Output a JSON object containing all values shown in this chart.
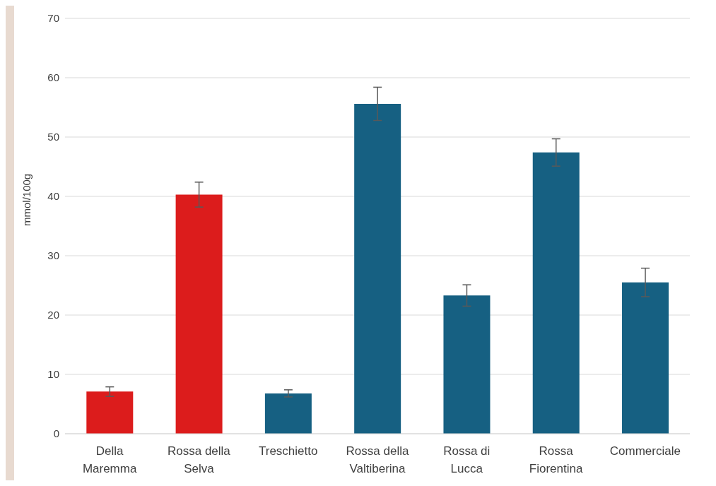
{
  "chart_data": {
    "type": "bar",
    "ylabel": "mmol/100g",
    "categories": [
      "Della Maremma",
      "Rossa della Selva",
      "Treschietto",
      "Rossa della Valtiberina",
      "Rossa di Lucca",
      "Rossa Fiorentina",
      "Commerciale"
    ],
    "values": [
      7.1,
      40.3,
      6.8,
      55.6,
      23.3,
      47.4,
      25.5
    ],
    "errors": [
      0.8,
      2.1,
      0.6,
      2.8,
      1.8,
      2.3,
      2.4
    ],
    "colors": [
      "#dc1c1c",
      "#dc1c1c",
      "#166082",
      "#166082",
      "#166082",
      "#166082",
      "#166082"
    ],
    "ylim": [
      0,
      70
    ],
    "yticks": [
      0,
      10,
      20,
      30,
      40,
      50,
      60,
      70
    ],
    "grid": "y"
  }
}
